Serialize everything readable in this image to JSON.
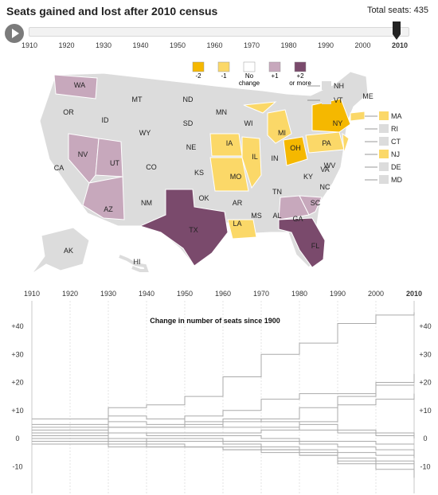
{
  "header": {
    "title": "Seats gained and lost after 2010 census",
    "total_label": "Total seats: 435"
  },
  "timeline": {
    "years": [
      "1910",
      "1920",
      "1930",
      "1940",
      "1950",
      "1960",
      "1970",
      "1980",
      "1990",
      "2000",
      "2010"
    ],
    "selected": "2010"
  },
  "legend": {
    "items": [
      {
        "label": "-2",
        "color": "#f5b800"
      },
      {
        "label": "-1",
        "color": "#fbd868"
      },
      {
        "label": "No change",
        "color": "#ffffff"
      },
      {
        "label": "+1",
        "color": "#c7a8bc"
      },
      {
        "label": "+2 or more",
        "color": "#7a4a6c"
      }
    ]
  },
  "map": {
    "states": [
      "WA",
      "OR",
      "ID",
      "MT",
      "ND",
      "MN",
      "WI",
      "MI",
      "NY",
      "ME",
      "SD",
      "WY",
      "IA",
      "IL",
      "IN",
      "OH",
      "PA",
      "NJ",
      "NE",
      "NV",
      "UT",
      "CA",
      "CO",
      "KS",
      "MO",
      "KY",
      "WV",
      "VA",
      "OK",
      "AR",
      "TN",
      "NC",
      "AZ",
      "NM",
      "TX",
      "LA",
      "MS",
      "AL",
      "GA",
      "SC",
      "FL",
      "AK",
      "HI"
    ],
    "small_states": [
      "NH",
      "VT",
      "MA",
      "RI",
      "CT",
      "NJ",
      "DE",
      "MD"
    ],
    "colors": {
      "minus2": "#f5b800",
      "minus1": "#fbd868",
      "nochange": "#dcdcdc",
      "plus1": "#c7a8bc",
      "plus2": "#7a4a6c"
    }
  },
  "chart_data": {
    "type": "line",
    "title": "Change in number of seats since 1900",
    "x": [
      1910,
      1920,
      1930,
      1940,
      1950,
      1960,
      1970,
      1980,
      1990,
      2000,
      2010
    ],
    "yticks": [
      "+40",
      "+30",
      "+20",
      "+10",
      "0",
      "-10"
    ],
    "ylim": [
      -15,
      45
    ],
    "series": [
      {
        "values": [
          3,
          3,
          11,
          12,
          15,
          22,
          30,
          34,
          41,
          44,
          45
        ]
      },
      {
        "values": [
          4,
          4,
          4,
          4,
          8,
          10,
          14,
          16,
          16,
          19,
          19
        ]
      },
      {
        "values": [
          1,
          1,
          4,
          4,
          4,
          6,
          7,
          11,
          15,
          20,
          23
        ]
      },
      {
        "values": [
          2,
          2,
          2,
          2,
          2,
          2,
          3,
          6,
          12,
          14,
          16
        ]
      },
      {
        "values": [
          7,
          7,
          8,
          7,
          6,
          7,
          6,
          5,
          3,
          2,
          0
        ]
      },
      {
        "values": [
          5,
          5,
          6,
          5,
          5,
          4,
          4,
          3,
          2,
          1,
          1
        ]
      },
      {
        "values": [
          0,
          0,
          0,
          -1,
          -1,
          -2,
          -3,
          -5,
          -7,
          -8,
          -10
        ]
      },
      {
        "values": [
          -1,
          -1,
          -1,
          -2,
          -3,
          -4,
          -4,
          -6,
          -9,
          -11,
          -14
        ]
      },
      {
        "values": [
          0,
          0,
          -2,
          -3,
          -3,
          -4,
          -5,
          -6,
          -8,
          -9,
          -11
        ]
      },
      {
        "values": [
          -2,
          -2,
          -3,
          -3,
          -3,
          -3,
          -4,
          -4,
          -5,
          -6,
          -7
        ]
      },
      {
        "values": [
          1,
          1,
          0,
          0,
          0,
          -1,
          -1,
          -2,
          -3,
          -4,
          -6
        ]
      },
      {
        "values": [
          2,
          2,
          2,
          1,
          1,
          1,
          0,
          -1,
          -1,
          -2,
          -2
        ]
      }
    ]
  }
}
